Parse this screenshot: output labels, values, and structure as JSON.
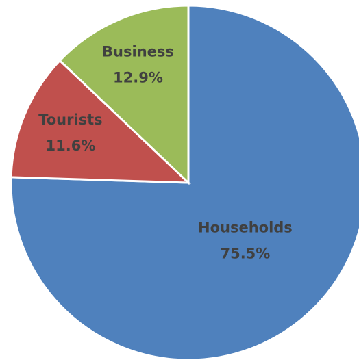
{
  "chart_data": {
    "type": "pie",
    "categories": [
      "Households",
      "Tourists",
      "Business"
    ],
    "values": [
      75.5,
      11.6,
      12.9
    ],
    "value_labels": [
      "75.5%",
      "11.6%",
      "12.9%"
    ],
    "colors": [
      "#4f81bd",
      "#c0504d",
      "#9bbb59"
    ]
  }
}
